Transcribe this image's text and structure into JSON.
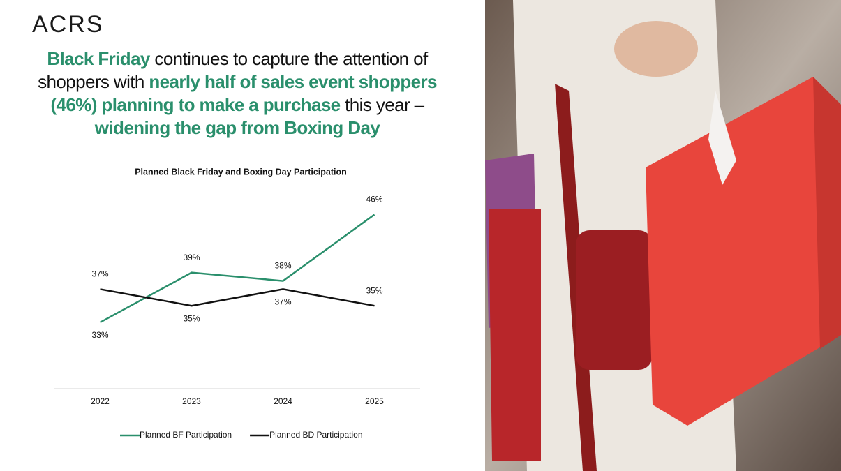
{
  "logo": "ACRS",
  "headline": [
    {
      "text": "Black Friday",
      "color": "#2a8f6c"
    },
    {
      "text": " continues to capture the attention of shoppers with ",
      "color": "#111111"
    },
    {
      "text": "nearly half of sales event shoppers (46%) planning to make a purchase",
      "color": "#2a8f6c"
    },
    {
      "text": " this year – ",
      "color": "#111111"
    },
    {
      "text": "widening the gap from Boxing Day",
      "color": "#2a8f6c"
    }
  ],
  "chart_data": {
    "type": "line",
    "title": "Planned Black Friday and Boxing Day Participation",
    "categories": [
      "2022",
      "2023",
      "2024",
      "2025"
    ],
    "series": [
      {
        "name": "Planned BF Participation",
        "color": "#2a8f6c",
        "values": [
          33,
          39,
          38,
          46
        ],
        "value_labels": [
          "33%",
          "39%",
          "38%",
          "46%"
        ]
      },
      {
        "name": "Planned BD Participation",
        "color": "#111111",
        "values": [
          37,
          35,
          37,
          35
        ],
        "value_labels": [
          "37%",
          "35%",
          "37%",
          "35%"
        ]
      }
    ],
    "ylim": [
      25,
      50
    ],
    "legend": "bottom"
  }
}
